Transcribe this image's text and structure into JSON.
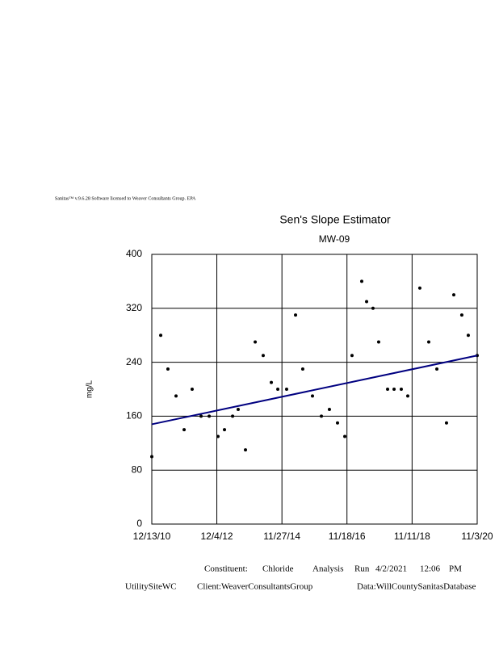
{
  "header": "Sanitas™   v.9.6.28   Software   licensed   to  Weaver   Consultants   Group.   EPA",
  "chart_data": {
    "type": "scatter",
    "title": "Sen's Slope Estimator",
    "subtitle": "MW-09",
    "y_label": "mg/L",
    "color": "#000000",
    "x": [
      "2010-12-13",
      "2011-03-22",
      "2011-06-10",
      "2011-09-08",
      "2011-12-07",
      "2012-03-05",
      "2012-06-12",
      "2012-09-10",
      "2012-12-17",
      "2013-02-27",
      "2013-05-28",
      "2013-07-29",
      "2013-10-18",
      "2014-02-03",
      "2014-05-03",
      "2014-08-01",
      "2014-10-12",
      "2015-01-18",
      "2015-04-27",
      "2015-07-16",
      "2015-11-01",
      "2016-02-08",
      "2016-05-07",
      "2016-08-05",
      "2016-10-25",
      "2017-01-13",
      "2017-05-01",
      "2017-06-24",
      "2017-09-03",
      "2017-11-05",
      "2018-02-12",
      "2018-04-25",
      "2018-07-14",
      "2018-09-24",
      "2019-02-05",
      "2019-05-15",
      "2019-08-13",
      "2019-11-28",
      "2020-02-17",
      "2020-05-16",
      "2020-07-27",
      "2020-11-03"
    ],
    "values": [
      100,
      280,
      230,
      190,
      140,
      200,
      160,
      160,
      130,
      140,
      160,
      170,
      110,
      270,
      250,
      210,
      200,
      200,
      310,
      230,
      190,
      160,
      170,
      150,
      130,
      250,
      360,
      330,
      320,
      270,
      200,
      200,
      200,
      190,
      350,
      270,
      230,
      150,
      340,
      310,
      280,
      250
    ],
    "trend_line": {
      "x": [
        "2010-12-13",
        "2020-11-03"
      ],
      "values": [
        148,
        250
      ],
      "color": "#000080"
    },
    "xlim": [
      "2010-12-13",
      "2020-11-03"
    ],
    "xticks": [
      {
        "value": "2010-12-13",
        "label": "12/13/10"
      },
      {
        "value": "2012-12-04",
        "label": "12/4/12"
      },
      {
        "value": "2014-11-27",
        "label": "11/27/14"
      },
      {
        "value": "2016-11-18",
        "label": "11/18/16"
      },
      {
        "value": "2018-11-11",
        "label": "11/11/18"
      },
      {
        "value": "2020-11-03",
        "label": "11/3/20"
      }
    ],
    "ylim": [
      0,
      400
    ],
    "yticks": [
      0,
      80,
      160,
      240,
      320,
      400
    ],
    "grid": true
  },
  "footer": {
    "line1": [
      "Constituent:",
      "Chloride",
      "Analysis",
      "Run",
      "4/2/2021",
      "12:06",
      "PM"
    ],
    "line2": [
      "UtilitySiteWC",
      "Client:WeaverConsultantsGroup",
      "Data:WillCountySanitasDatabase"
    ]
  }
}
